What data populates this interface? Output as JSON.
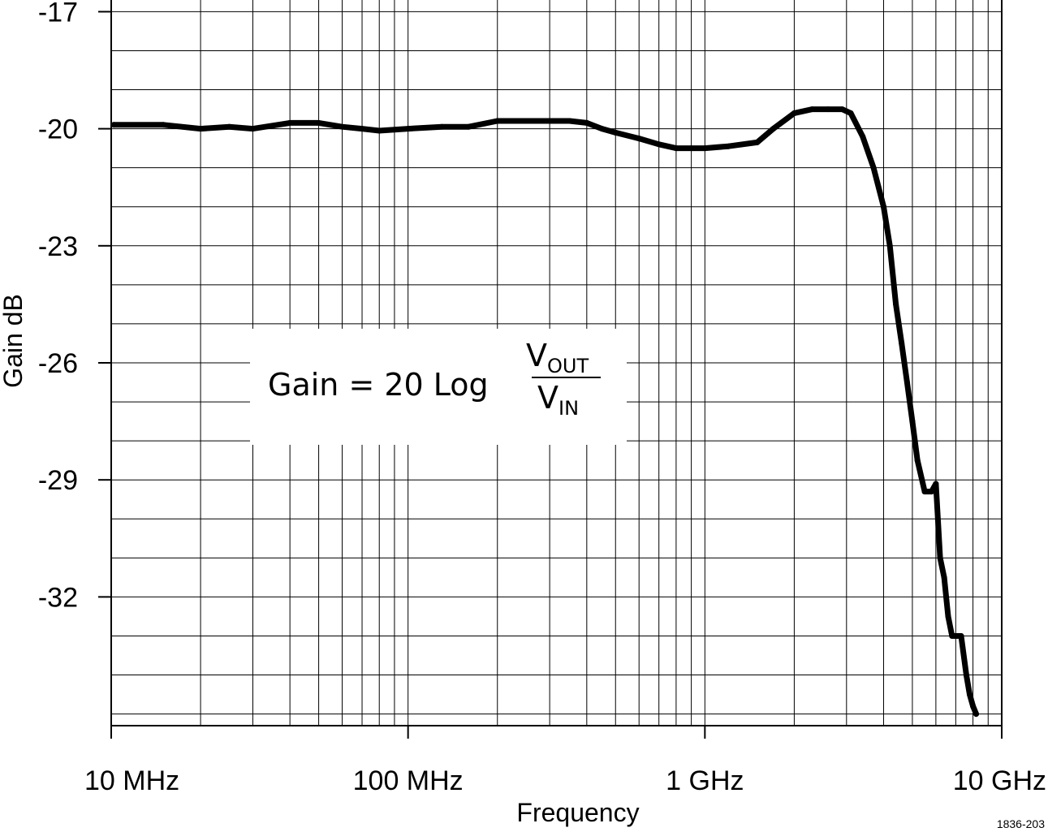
{
  "chart_data": {
    "type": "line",
    "title": "",
    "xlabel": "Frequency",
    "ylabel": "Gain dB",
    "x_scale": "log",
    "xlim": [
      10,
      10000
    ],
    "ylim": [
      -35.3,
      -16.7
    ],
    "grid": true,
    "x_ticks": [
      {
        "value": 10,
        "label": "10 MHz"
      },
      {
        "value": 100,
        "label": "100 MHz"
      },
      {
        "value": 1000,
        "label": "1 GHz"
      },
      {
        "value": 10000,
        "label": "10 GHz"
      }
    ],
    "y_ticks": [
      {
        "value": -17,
        "label": "-17"
      },
      {
        "value": -20,
        "label": "-20"
      },
      {
        "value": -23,
        "label": "-23"
      },
      {
        "value": -26,
        "label": "-26"
      },
      {
        "value": -29,
        "label": "-29"
      },
      {
        "value": -32,
        "label": "-32"
      }
    ],
    "annotation": {
      "text": "Gain =  20 Log",
      "numerator": "V",
      "numerator_sub": "OUT",
      "denominator": "V",
      "denominator_sub": "IN"
    },
    "figure_id": "1836-203",
    "series": [
      {
        "color": "#000000",
        "x": [
          10.2,
          15,
          20,
          25,
          30,
          40,
          50,
          60,
          70,
          80,
          100,
          130,
          160,
          200,
          250,
          300,
          350,
          400,
          450,
          500,
          600,
          700,
          800,
          900,
          1000,
          1200,
          1500,
          1700,
          2000,
          2300,
          2600,
          2900,
          3100,
          3400,
          3700,
          4000,
          4200,
          4400,
          4600,
          4800,
          5000,
          5200,
          5500,
          5800,
          6000,
          6200,
          6400,
          6600,
          6800,
          7000,
          7300,
          7600,
          7800,
          8000,
          8200
        ],
        "y": [
          -19.9,
          -19.9,
          -20.0,
          -19.95,
          -20.0,
          -19.85,
          -19.85,
          -19.95,
          -20.0,
          -20.05,
          -20.0,
          -19.95,
          -19.95,
          -19.8,
          -19.8,
          -19.8,
          -19.8,
          -19.85,
          -20.0,
          -20.1,
          -20.25,
          -20.4,
          -20.5,
          -20.5,
          -20.5,
          -20.45,
          -20.35,
          -20.0,
          -19.6,
          -19.5,
          -19.5,
          -19.5,
          -19.6,
          -20.2,
          -21.0,
          -22.0,
          -23.0,
          -24.5,
          -25.5,
          -26.5,
          -27.5,
          -28.5,
          -29.3,
          -29.3,
          -29.1,
          -31.0,
          -31.5,
          -32.5,
          -33.0,
          -33.0,
          -33.0,
          -34.0,
          -34.5,
          -34.8,
          -35.0
        ]
      }
    ]
  }
}
